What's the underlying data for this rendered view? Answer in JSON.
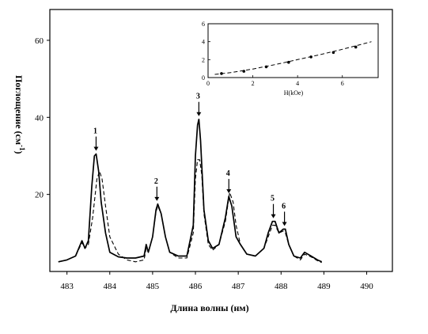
{
  "chart_data": {
    "type": "line",
    "xlabel": "Длина волны (нм)",
    "ylabel": "Поглощение (см",
    "ylabel_sup": "-1",
    "ylabel_close": ")",
    "xlim": [
      482.6,
      490.6
    ],
    "ylim": [
      0,
      68
    ],
    "x_ticks": [
      "483",
      "484",
      "485",
      "486",
      "487",
      "488",
      "489",
      "490"
    ],
    "y_ticks": [
      "20",
      "40",
      "60"
    ],
    "x_tick_values": [
      483,
      484,
      485,
      486,
      487,
      488,
      489,
      490
    ],
    "y_tick_values": [
      20,
      40,
      60
    ],
    "peaks": [
      {
        "label": "1",
        "x": 483.68,
        "y": 30.5
      },
      {
        "label": "2",
        "x": 485.1,
        "y": 17.5
      },
      {
        "label": "3",
        "x": 486.08,
        "y": 39.5
      },
      {
        "label": "4",
        "x": 486.78,
        "y": 19.5
      },
      {
        "label": "5",
        "x": 487.82,
        "y": 13
      },
      {
        "label": "6",
        "x": 488.08,
        "y": 11
      }
    ],
    "series": [
      {
        "style": "solid",
        "x": [
          482.8,
          483.0,
          483.2,
          483.35,
          483.42,
          483.5,
          483.58,
          483.64,
          483.68,
          483.74,
          483.8,
          483.9,
          484.0,
          484.2,
          484.4,
          484.6,
          484.8,
          484.85,
          484.9,
          485.0,
          485.08,
          485.12,
          485.2,
          485.3,
          485.4,
          485.6,
          485.8,
          485.95,
          486.0,
          486.05,
          486.08,
          486.12,
          486.2,
          486.3,
          486.4,
          486.55,
          486.7,
          486.78,
          486.85,
          486.95,
          487.05,
          487.2,
          487.4,
          487.6,
          487.7,
          487.8,
          487.86,
          487.95,
          488.05,
          488.1,
          488.18,
          488.3,
          488.45,
          488.55,
          488.7,
          488.85,
          488.95
        ],
        "y": [
          2.5,
          3,
          4,
          8,
          6,
          8,
          22,
          30,
          30.5,
          26,
          18,
          10,
          5,
          3.8,
          3.5,
          3.5,
          4,
          7,
          5,
          9,
          16,
          17.5,
          15,
          9,
          5,
          4,
          4,
          12,
          30,
          38,
          39.5,
          34,
          16,
          8,
          6,
          7,
          14,
          19.5,
          17,
          9,
          7,
          4.5,
          4,
          6,
          10,
          13,
          13,
          10,
          11,
          11,
          7,
          4,
          3.5,
          5,
          4,
          3,
          2.5
        ]
      },
      {
        "style": "dashed",
        "x": [
          482.8,
          483.0,
          483.2,
          483.35,
          483.42,
          483.5,
          483.6,
          483.7,
          483.76,
          483.82,
          483.9,
          484.0,
          484.2,
          484.4,
          484.6,
          484.8,
          484.85,
          484.9,
          485.0,
          485.08,
          485.12,
          485.2,
          485.3,
          485.4,
          485.6,
          485.8,
          485.95,
          486.0,
          486.05,
          486.1,
          486.15,
          486.2,
          486.3,
          486.4,
          486.55,
          486.7,
          486.8,
          486.88,
          486.95,
          487.05,
          487.2,
          487.4,
          487.6,
          487.7,
          487.8,
          487.86,
          487.95,
          488.05,
          488.1,
          488.18,
          488.3,
          488.45,
          488.55,
          488.7,
          488.85,
          488.95
        ],
        "y": [
          2.5,
          3,
          4,
          7.5,
          6,
          7,
          14,
          24,
          26,
          24,
          17,
          9,
          4.5,
          3,
          2.5,
          3,
          6,
          5,
          9,
          15.5,
          17,
          15,
          9,
          5,
          3.5,
          3.5,
          10,
          24,
          29,
          29,
          25,
          15,
          7,
          5.5,
          7,
          13,
          20.5,
          18,
          12,
          7,
          4.5,
          4,
          6,
          9,
          12,
          12,
          10,
          10.5,
          10,
          7,
          4,
          3,
          4.5,
          3.8,
          2.8,
          2.3
        ]
      }
    ],
    "inset": {
      "type": "scatter",
      "xlabel": "H(kOe)",
      "xlim": [
        0,
        7.6
      ],
      "ylim": [
        0,
        6
      ],
      "x_ticks": [
        "0",
        "2",
        "4",
        "6"
      ],
      "y_ticks": [
        "0",
        "2",
        "4",
        "6"
      ],
      "x_tick_values": [
        0,
        2,
        4,
        6
      ],
      "y_tick_values": [
        0,
        2,
        4,
        6
      ],
      "points_x": [
        0.6,
        1.6,
        2.6,
        3.6,
        4.6,
        5.6,
        6.6
      ],
      "points_y": [
        0.45,
        0.7,
        1.2,
        1.7,
        2.3,
        2.8,
        3.4
      ],
      "curve_x": [
        0.3,
        1,
        2,
        3,
        4,
        5,
        6,
        7,
        7.3
      ],
      "curve_y": [
        0.35,
        0.55,
        0.95,
        1.45,
        2.0,
        2.55,
        3.15,
        3.8,
        4.0
      ]
    }
  }
}
